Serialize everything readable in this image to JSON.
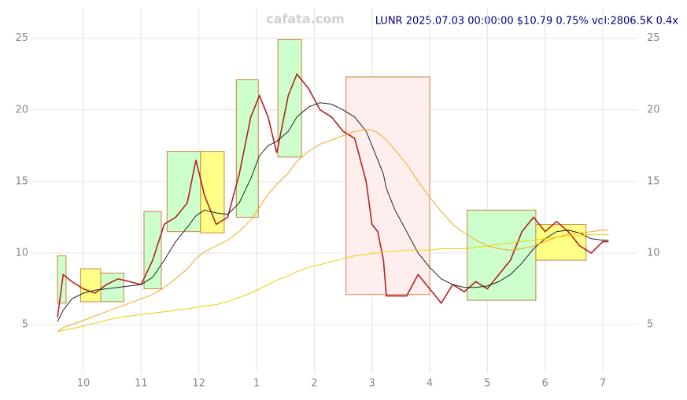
{
  "chart_data": {
    "type": "line",
    "watermark": "cafata.com",
    "title": "LUNR 2025.07.03 00:00:00 $10.79 0.75% vol:2806.5K 0.4x",
    "xlim": [
      9.1,
      19.6
    ],
    "ylim": [
      1.6,
      27.4
    ],
    "xticks": [
      {
        "value": 10,
        "label": "10"
      },
      {
        "value": 11,
        "label": "11"
      },
      {
        "value": 12,
        "label": "12"
      },
      {
        "value": 13,
        "label": "1"
      },
      {
        "value": 14,
        "label": "2"
      },
      {
        "value": 15,
        "label": "3"
      },
      {
        "value": 16,
        "label": "4"
      },
      {
        "value": 17,
        "label": "5"
      },
      {
        "value": 18,
        "label": "6"
      },
      {
        "value": 19,
        "label": "7"
      }
    ],
    "yticks": [
      5,
      10,
      15,
      20,
      25
    ],
    "grid": true,
    "boxes": [
      {
        "x": [
          9.55,
          9.7
        ],
        "y": [
          6.5,
          9.8
        ],
        "color": "#ccffcc"
      },
      {
        "x": [
          9.95,
          10.3
        ],
        "y": [
          6.6,
          8.9
        ],
        "color": "#ffff88"
      },
      {
        "x": [
          10.3,
          10.7
        ],
        "y": [
          6.6,
          8.6
        ],
        "color": "#ccffcc"
      },
      {
        "x": [
          11.05,
          11.35
        ],
        "y": [
          7.5,
          12.9
        ],
        "color": "#ccffcc"
      },
      {
        "x": [
          11.45,
          12.03
        ],
        "y": [
          11.5,
          17.1
        ],
        "color": "#ccffcc"
      },
      {
        "x": [
          12.03,
          12.44
        ],
        "y": [
          11.4,
          17.1
        ],
        "color": "#ffff88"
      },
      {
        "x": [
          12.65,
          13.03
        ],
        "y": [
          12.5,
          22.1
        ],
        "color": "#ccffcc"
      },
      {
        "x": [
          13.37,
          13.78
        ],
        "y": [
          16.7,
          24.9
        ],
        "color": "#ccffcc"
      },
      {
        "x": [
          14.55,
          16.0
        ],
        "y": [
          7.1,
          22.3
        ],
        "color": "#ffeeee"
      },
      {
        "x": [
          16.65,
          17.84
        ],
        "y": [
          6.7,
          13.0
        ],
        "color": "#ccffcc"
      },
      {
        "x": [
          17.84,
          18.71
        ],
        "y": [
          9.5,
          12.0
        ],
        "color": "#ffff88"
      }
    ],
    "x": [
      9.55,
      9.65,
      9.8,
      10.0,
      10.2,
      10.4,
      10.6,
      10.8,
      11.0,
      11.2,
      11.4,
      11.6,
      11.8,
      11.95,
      12.1,
      12.3,
      12.5,
      12.7,
      12.9,
      13.05,
      13.2,
      13.35,
      13.55,
      13.7,
      13.9,
      14.1,
      14.3,
      14.5,
      14.7,
      14.9,
      15.0,
      15.1,
      15.2,
      15.25,
      15.4,
      15.6,
      15.8,
      16.0,
      16.2,
      16.4,
      16.6,
      16.8,
      17.0,
      17.2,
      17.4,
      17.6,
      17.8,
      18.0,
      18.2,
      18.4,
      18.6,
      18.8,
      19.0,
      19.1
    ],
    "series": [
      {
        "color": "#b22222",
        "values": [
          5.5,
          8.5,
          8.0,
          7.5,
          7.2,
          7.8,
          8.2,
          8.0,
          7.8,
          9.5,
          12.0,
          12.5,
          13.5,
          16.5,
          14.0,
          12.0,
          12.5,
          15.5,
          19.5,
          21,
          19.5,
          17,
          21,
          22.5,
          21.5,
          20,
          19.5,
          18.5,
          18,
          15,
          12,
          11.5,
          9.5,
          7.0,
          7.0,
          7.0,
          8.5,
          7.5,
          6.5,
          7.8,
          7.3,
          8.0,
          7.5,
          8.5,
          9.5,
          11.5,
          12.5,
          11.5,
          12.2,
          11.5,
          10.5,
          10.0,
          10.8,
          10.79
        ]
      },
      {
        "color": "#222222",
        "values": [
          5.2,
          6.0,
          6.8,
          7.2,
          7.4,
          7.5,
          7.6,
          7.7,
          7.8,
          8.3,
          9.5,
          10.8,
          11.8,
          12.6,
          13.0,
          12.8,
          12.7,
          13.5,
          15.2,
          16.8,
          17.5,
          17.8,
          18.5,
          19.5,
          20.2,
          20.5,
          20.4,
          20.0,
          19.5,
          18.5,
          17.5,
          16.5,
          15.5,
          14.5,
          13.0,
          11.5,
          10.0,
          9.0,
          8.2,
          7.8,
          7.6,
          7.6,
          7.7,
          8.0,
          8.5,
          9.3,
          10.3,
          11.0,
          11.5,
          11.6,
          11.4,
          11.0,
          10.9,
          10.9
        ]
      },
      {
        "color": "#f5a623",
        "values": [
          4.5,
          4.8,
          5.0,
          5.3,
          5.6,
          5.9,
          6.2,
          6.5,
          6.8,
          7.1,
          7.6,
          8.2,
          8.9,
          9.6,
          10.1,
          10.5,
          10.9,
          11.5,
          12.3,
          13.2,
          14.1,
          14.8,
          15.6,
          16.4,
          17.1,
          17.6,
          17.9,
          18.2,
          18.5,
          18.6,
          18.6,
          18.4,
          18.1,
          17.9,
          17.2,
          16.2,
          15.0,
          13.9,
          12.9,
          12.0,
          11.4,
          10.9,
          10.5,
          10.3,
          10.2,
          10.3,
          10.5,
          10.8,
          11.1,
          11.3,
          11.4,
          11.5,
          11.6,
          11.6
        ]
      },
      {
        "color": "#f0d000",
        "values": [
          4.5,
          4.6,
          4.7,
          4.9,
          5.1,
          5.3,
          5.5,
          5.6,
          5.7,
          5.8,
          5.9,
          6.0,
          6.1,
          6.2,
          6.3,
          6.4,
          6.6,
          6.9,
          7.2,
          7.5,
          7.8,
          8.1,
          8.4,
          8.7,
          9.0,
          9.2,
          9.4,
          9.6,
          9.8,
          9.9,
          10.0,
          10.0,
          10.1,
          10.1,
          10.1,
          10.2,
          10.2,
          10.2,
          10.3,
          10.3,
          10.3,
          10.4,
          10.5,
          10.6,
          10.7,
          10.8,
          10.9,
          11.0,
          11.1,
          11.2,
          11.2,
          11.3,
          11.3,
          11.3
        ]
      }
    ]
  }
}
